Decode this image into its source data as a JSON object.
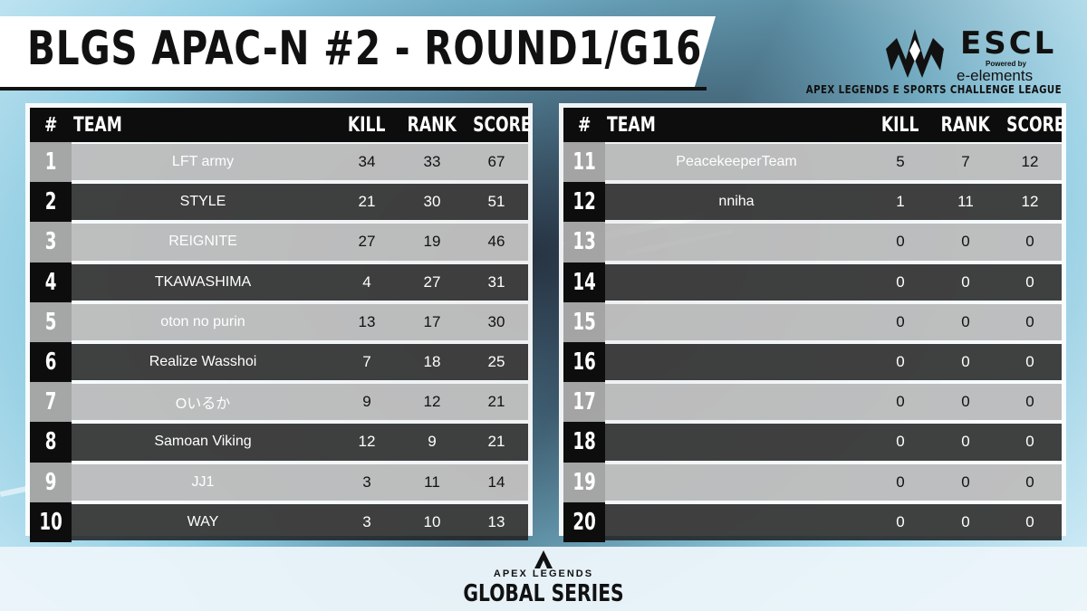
{
  "title": "BLGS APAC-N #2 - ROUND1/G16",
  "logo": {
    "brand": "ESCL",
    "powered_by": "Powered by",
    "sponsor": "e-elements",
    "league": "APEX LEGENDS  E SPORTS CHALLENGE LEAGUE"
  },
  "table_headers": {
    "rank": "#",
    "team": "TEAM",
    "kill": "KILL",
    "placement": "RANK",
    "score": "SCORE"
  },
  "left_rows": [
    {
      "num": "1",
      "team": "LFT army",
      "kill": "34",
      "rank": "33",
      "score": "67"
    },
    {
      "num": "2",
      "team": "STYLE",
      "kill": "21",
      "rank": "30",
      "score": "51"
    },
    {
      "num": "3",
      "team": "REIGNITE",
      "kill": "27",
      "rank": "19",
      "score": "46"
    },
    {
      "num": "4",
      "team": "TKAWASHIMA",
      "kill": "4",
      "rank": "27",
      "score": "31"
    },
    {
      "num": "5",
      "team": "oton no purin",
      "kill": "13",
      "rank": "17",
      "score": "30"
    },
    {
      "num": "6",
      "team": "Realize Wasshoi",
      "kill": "7",
      "rank": "18",
      "score": "25"
    },
    {
      "num": "7",
      "team": "Oいるか",
      "kill": "9",
      "rank": "12",
      "score": "21"
    },
    {
      "num": "8",
      "team": "Samoan Viking",
      "kill": "12",
      "rank": "9",
      "score": "21"
    },
    {
      "num": "9",
      "team": "JJ1",
      "kill": "3",
      "rank": "11",
      "score": "14"
    },
    {
      "num": "10",
      "team": "WAY",
      "kill": "3",
      "rank": "10",
      "score": "13"
    }
  ],
  "right_rows": [
    {
      "num": "11",
      "team": "PeacekeeperTeam",
      "kill": "5",
      "rank": "7",
      "score": "12"
    },
    {
      "num": "12",
      "team": "nniha",
      "kill": "1",
      "rank": "11",
      "score": "12"
    },
    {
      "num": "13",
      "team": "",
      "kill": "0",
      "rank": "0",
      "score": "0"
    },
    {
      "num": "14",
      "team": "",
      "kill": "0",
      "rank": "0",
      "score": "0"
    },
    {
      "num": "15",
      "team": "",
      "kill": "0",
      "rank": "0",
      "score": "0"
    },
    {
      "num": "16",
      "team": "",
      "kill": "0",
      "rank": "0",
      "score": "0"
    },
    {
      "num": "17",
      "team": "",
      "kill": "0",
      "rank": "0",
      "score": "0"
    },
    {
      "num": "18",
      "team": "",
      "kill": "0",
      "rank": "0",
      "score": "0"
    },
    {
      "num": "19",
      "team": "",
      "kill": "0",
      "rank": "0",
      "score": "0"
    },
    {
      "num": "20",
      "team": "",
      "kill": "0",
      "rank": "0",
      "score": "0"
    }
  ],
  "footer": {
    "apex": "APEX LEGENDS",
    "series": "GLOBAL SERIES"
  }
}
